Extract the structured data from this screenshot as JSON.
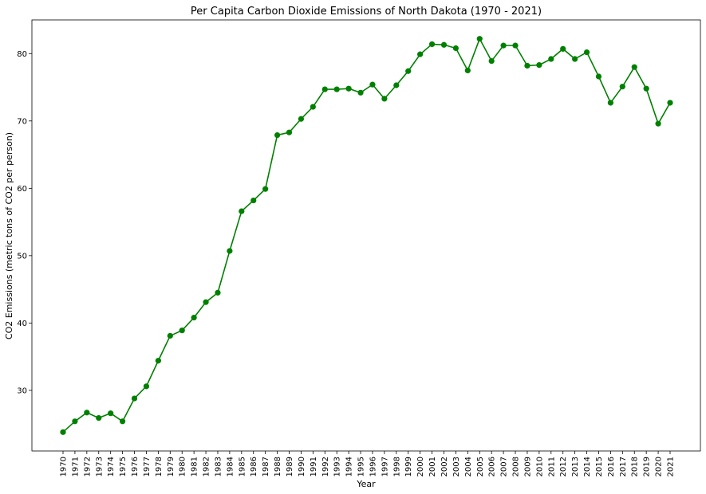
{
  "chart_data": {
    "type": "line",
    "title": "Per Capita Carbon Dioxide Emissions of North Dakota (1970 - 2021)",
    "xlabel": "Year",
    "ylabel": "CO2 Emissions (metric tons of CO2 per person)",
    "x": [
      1970,
      1971,
      1972,
      1973,
      1974,
      1975,
      1976,
      1977,
      1978,
      1979,
      1980,
      1981,
      1982,
      1983,
      1984,
      1985,
      1986,
      1987,
      1988,
      1989,
      1990,
      1991,
      1992,
      1993,
      1994,
      1995,
      1996,
      1997,
      1998,
      1999,
      2000,
      2001,
      2002,
      2003,
      2004,
      2005,
      2006,
      2007,
      2008,
      2009,
      2010,
      2011,
      2012,
      2013,
      2014,
      2015,
      2016,
      2017,
      2018,
      2019,
      2020,
      2021
    ],
    "series": [
      {
        "values": [
          23.8,
          25.4,
          26.7,
          25.9,
          26.6,
          25.4,
          28.8,
          30.6,
          34.4,
          38.1,
          38.9,
          40.8,
          43.1,
          44.5,
          50.7,
          56.6,
          58.2,
          59.9,
          67.9,
          68.3,
          70.3,
          72.1,
          74.7,
          74.7,
          74.8,
          74.2,
          75.4,
          73.3,
          75.3,
          77.4,
          79.9,
          81.4,
          81.3,
          80.8,
          77.5,
          82.2,
          78.9,
          81.2,
          81.2,
          78.2,
          78.3,
          79.2,
          80.7,
          79.2,
          80.2,
          76.6,
          72.7,
          75.1,
          78.0,
          74.8,
          69.6,
          72.7
        ],
        "color": "#008000"
      }
    ],
    "yticks": [
      30,
      40,
      50,
      60,
      70,
      80
    ],
    "ylim": [
      21.0,
      85.0
    ],
    "grid": false,
    "legend": false
  }
}
